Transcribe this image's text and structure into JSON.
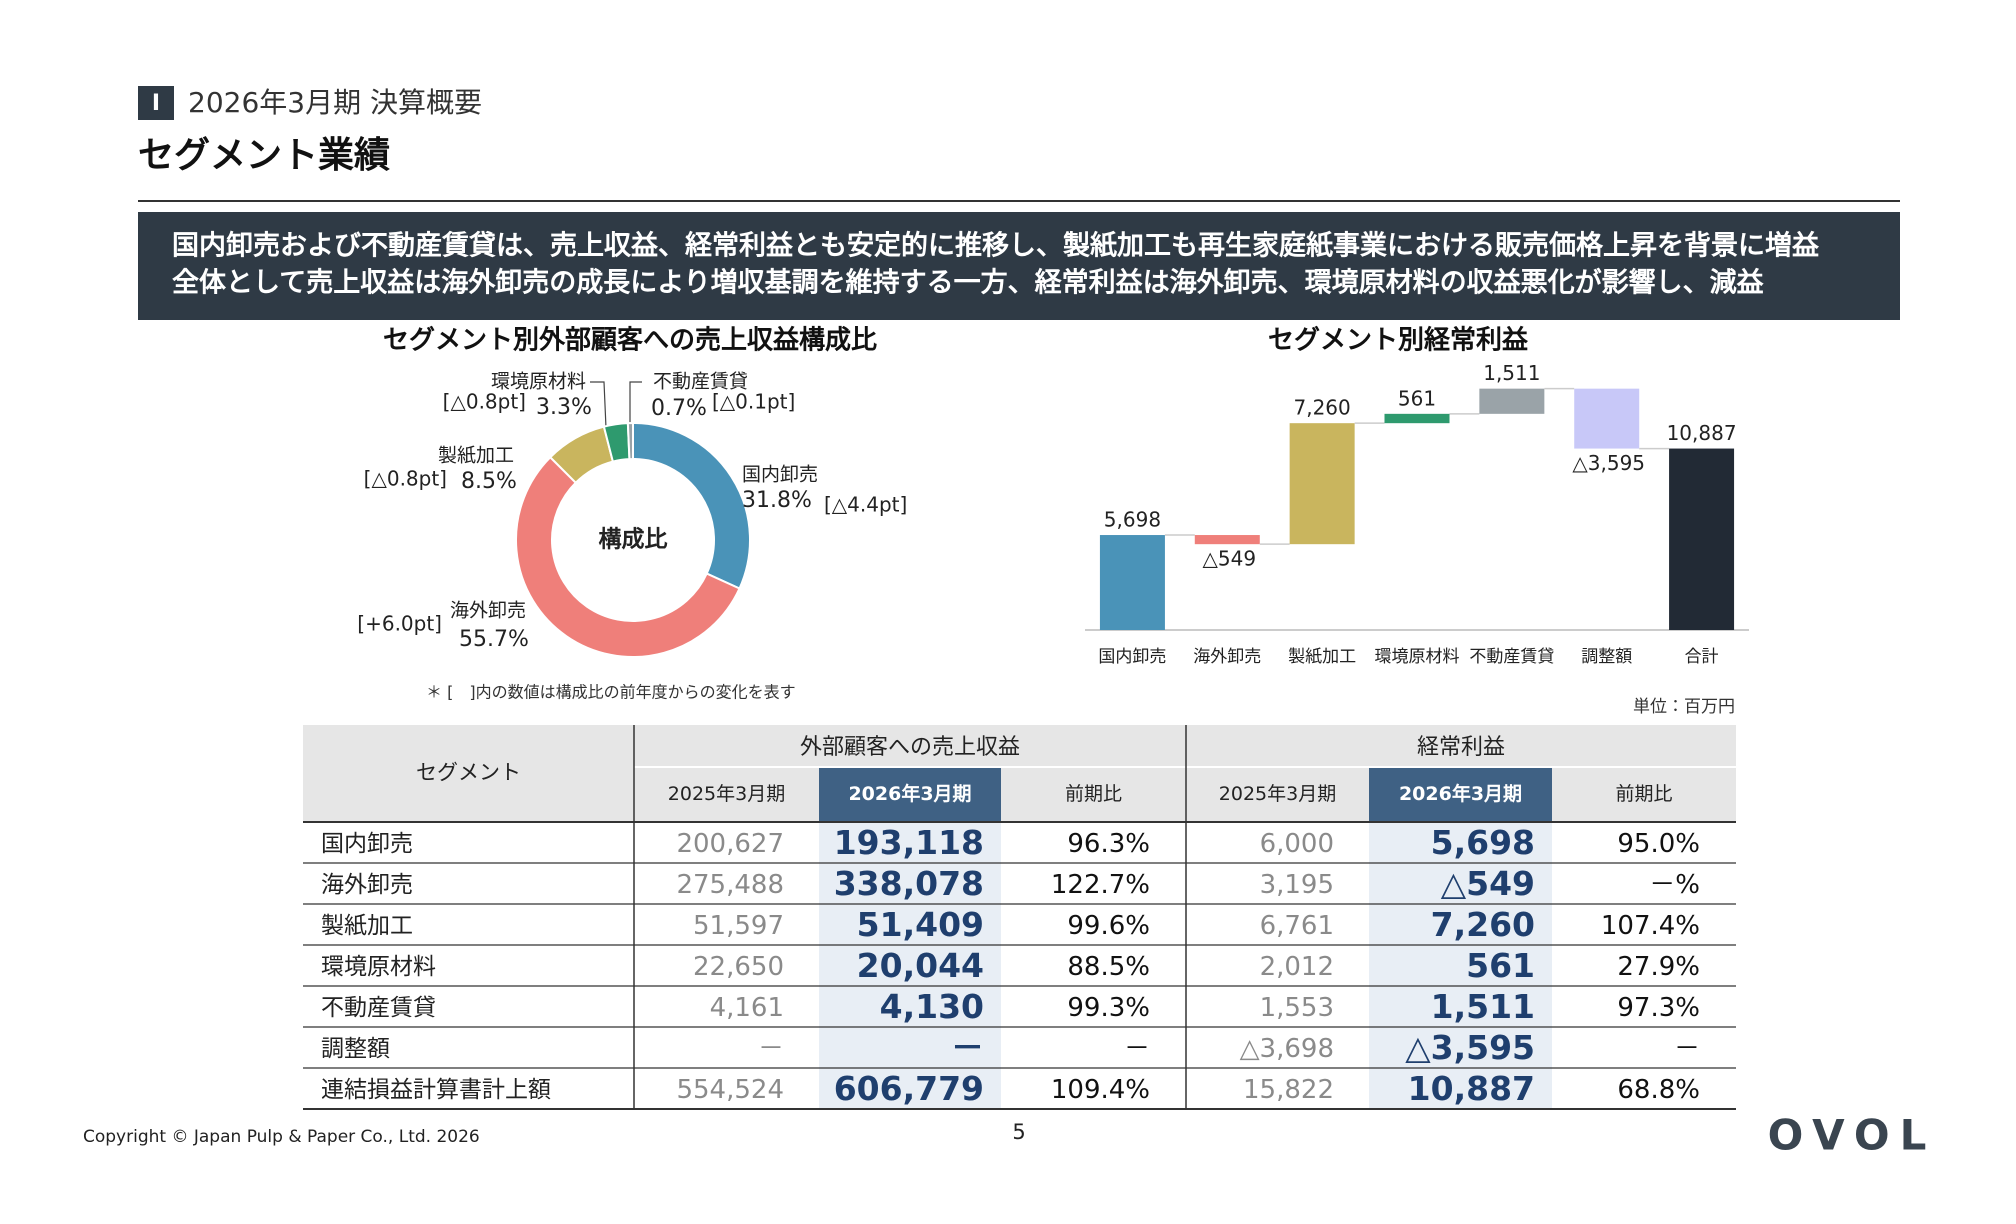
{
  "header": {
    "section": "Ⅰ",
    "subtitle": "2026年3月期 決算概要",
    "title": "セグメント業績"
  },
  "summary": [
    "国内卸売および不動産賃貸は、売上収益、経常利益とも安定的に推移し、製紙加工も再生家庭紙事業における販売価格上昇を背景に増益",
    "全体として売上収益は海外卸売の成長により増収基調を維持する一方、経常利益は海外卸売、環境原材料の収益悪化が影響し、減益"
  ],
  "chart_data": [
    {
      "type": "donut",
      "title": "セグメント別外部顧客への売上収益構成比",
      "center_label": "構成比",
      "categories": [
        "国内卸売",
        "海外卸売",
        "製紙加工",
        "環境原材料",
        "不動産賃貸"
      ],
      "values": [
        31.8,
        55.7,
        8.5,
        3.3,
        0.7
      ],
      "value_labels": [
        "31.8%",
        "55.7%",
        "8.5%",
        "3.3%",
        "0.7%"
      ],
      "change_labels": [
        "[△4.4pt]",
        "[+6.0pt]",
        "[△0.8pt]",
        "[△0.8pt]",
        "[△0.1pt]"
      ],
      "colors": [
        "#4a93b8",
        "#ef7f7a",
        "#c9b55e",
        "#2e9a6e",
        "#9aa3a8"
      ],
      "note": "＊ [　]内の数値は構成比の前年度からの変化を表す"
    },
    {
      "type": "waterfall",
      "title": "セグメント別経常利益",
      "categories": [
        "国内卸売",
        "海外卸売",
        "製紙加工",
        "環境原材料",
        "不動産賃貸",
        "調整額",
        "合計"
      ],
      "values": [
        5698,
        -549,
        7260,
        561,
        1511,
        -3595,
        10887
      ],
      "value_labels": [
        "5,698",
        "△549",
        "7,260",
        "561",
        "1,511",
        "△3,595",
        "10,887"
      ],
      "colors": [
        "#4a93b8",
        "#ef7f7a",
        "#c9b55e",
        "#2e9a6e",
        "#9aa3a8",
        "#c8c8f8",
        "#222a35"
      ],
      "ylim": [
        0,
        15000
      ]
    }
  ],
  "table": {
    "unit": "単位：百万円",
    "header": "セグメント",
    "groups": [
      "外部顧客への売上収益",
      "経常利益"
    ],
    "columns": [
      "2025年3月期",
      "2026年3月期",
      "前期比",
      "2025年3月期",
      "2026年3月期",
      "前期比"
    ],
    "rows": [
      [
        "国内卸売",
        "200,627",
        "193,118",
        "96.3%",
        "6,000",
        "5,698",
        "95.0%"
      ],
      [
        "海外卸売",
        "275,488",
        "338,078",
        "122.7%",
        "3,195",
        "△549",
        "－%"
      ],
      [
        "製紙加工",
        "51,597",
        "51,409",
        "99.6%",
        "6,761",
        "7,260",
        "107.4%"
      ],
      [
        "環境原材料",
        "22,650",
        "20,044",
        "88.5%",
        "2,012",
        "561",
        "27.9%"
      ],
      [
        "不動産賃貸",
        "4,161",
        "4,130",
        "99.3%",
        "1,553",
        "1,511",
        "97.3%"
      ],
      [
        "調整額",
        "－",
        "－",
        "－",
        "△3,698",
        "△3,595",
        "－"
      ],
      [
        "連結損益計算書計上額",
        "554,524",
        "606,779",
        "109.4%",
        "15,822",
        "10,887",
        "68.8%"
      ]
    ]
  },
  "footer": {
    "copyright": "Copyright © Japan Pulp & Paper Co., Ltd. 2026",
    "page": "5",
    "logo": "OVOL"
  }
}
